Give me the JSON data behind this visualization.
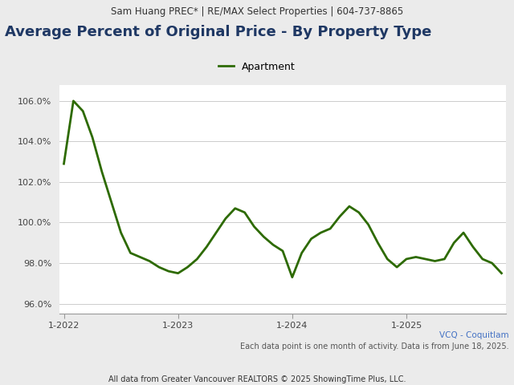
{
  "header_text": "Sam Huang PREC* | RE/MAX Select Properties | 604-737-8865",
  "title": "Average Percent of Original Price - By Property Type",
  "legend_label": "Apartment",
  "legend_color": "#2d6a00",
  "line_color": "#2d6a00",
  "line_width": 2.0,
  "ylabel_values": [
    96.0,
    98.0,
    100.0,
    102.0,
    104.0,
    106.0
  ],
  "ytick_labels": [
    "96.0%",
    "98.0%",
    "100.0%",
    "102.0%",
    "104.0%",
    "106.0%"
  ],
  "ylim": [
    95.5,
    106.8
  ],
  "footer_line1": "VCQ - Coquitlam",
  "footer_line2": "Each data point is one month of activity. Data is from June 18, 2025.",
  "footer_line3": "All data from Greater Vancouver REALTORS © 2025 ShowingTime Plus, LLC.",
  "background_color": "#ebebeb",
  "plot_background": "#ffffff",
  "header_bg": "#e0e0e0",
  "data": [
    102.9,
    106.0,
    105.5,
    104.2,
    102.5,
    101.0,
    99.5,
    98.5,
    98.3,
    98.1,
    97.8,
    97.6,
    97.5,
    97.8,
    98.2,
    98.8,
    99.5,
    100.2,
    100.7,
    100.5,
    99.8,
    99.3,
    98.9,
    98.6,
    97.3,
    98.5,
    99.2,
    99.5,
    99.7,
    100.3,
    100.8,
    100.5,
    99.9,
    99.0,
    98.2,
    97.8,
    98.2,
    98.3,
    98.2,
    98.1,
    98.2,
    99.0,
    99.5,
    98.8,
    98.2,
    98.0,
    97.5
  ],
  "xtick_positions": [
    0,
    12,
    24,
    36
  ],
  "xtick_labels": [
    "1-2022",
    "1-2023",
    "1-2024",
    "1-2025"
  ],
  "grid_color": "#cccccc",
  "title_color": "#1f3864",
  "title_fontsize": 13,
  "header_fontsize": 8.5,
  "axis_label_fontsize": 8,
  "footer_fontsize": 7.5,
  "footer_color1": "#4472c4",
  "footer_color2": "#555555",
  "footer_color3": "#333333"
}
